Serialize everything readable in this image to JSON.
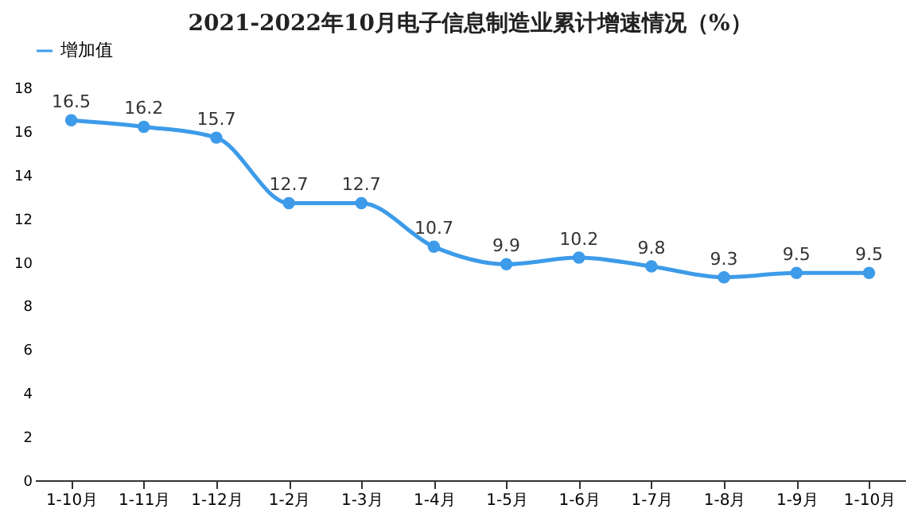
{
  "chart_data": {
    "type": "line",
    "title": "2021-2022年10月电子信息制造业累计增速情况（%）",
    "categories": [
      "1-10月",
      "1-11月",
      "1-12月",
      "1-2月",
      "1-3月",
      "1-4月",
      "1-5月",
      "1-6月",
      "1-7月",
      "1-8月",
      "1-9月",
      "1-10月"
    ],
    "series": [
      {
        "name": "增加值",
        "color": "#3d9be9",
        "values": [
          16.5,
          16.2,
          15.7,
          12.7,
          12.7,
          10.7,
          9.9,
          10.2,
          9.8,
          9.3,
          9.5,
          9.5
        ]
      }
    ],
    "ylim": [
      0,
      18
    ],
    "yticks": [
      0,
      2,
      4,
      6,
      8,
      10,
      12,
      14,
      16,
      18
    ],
    "grid": false,
    "legend": "top",
    "marker": "circle",
    "line_style": "solid",
    "data_labels": true
  }
}
